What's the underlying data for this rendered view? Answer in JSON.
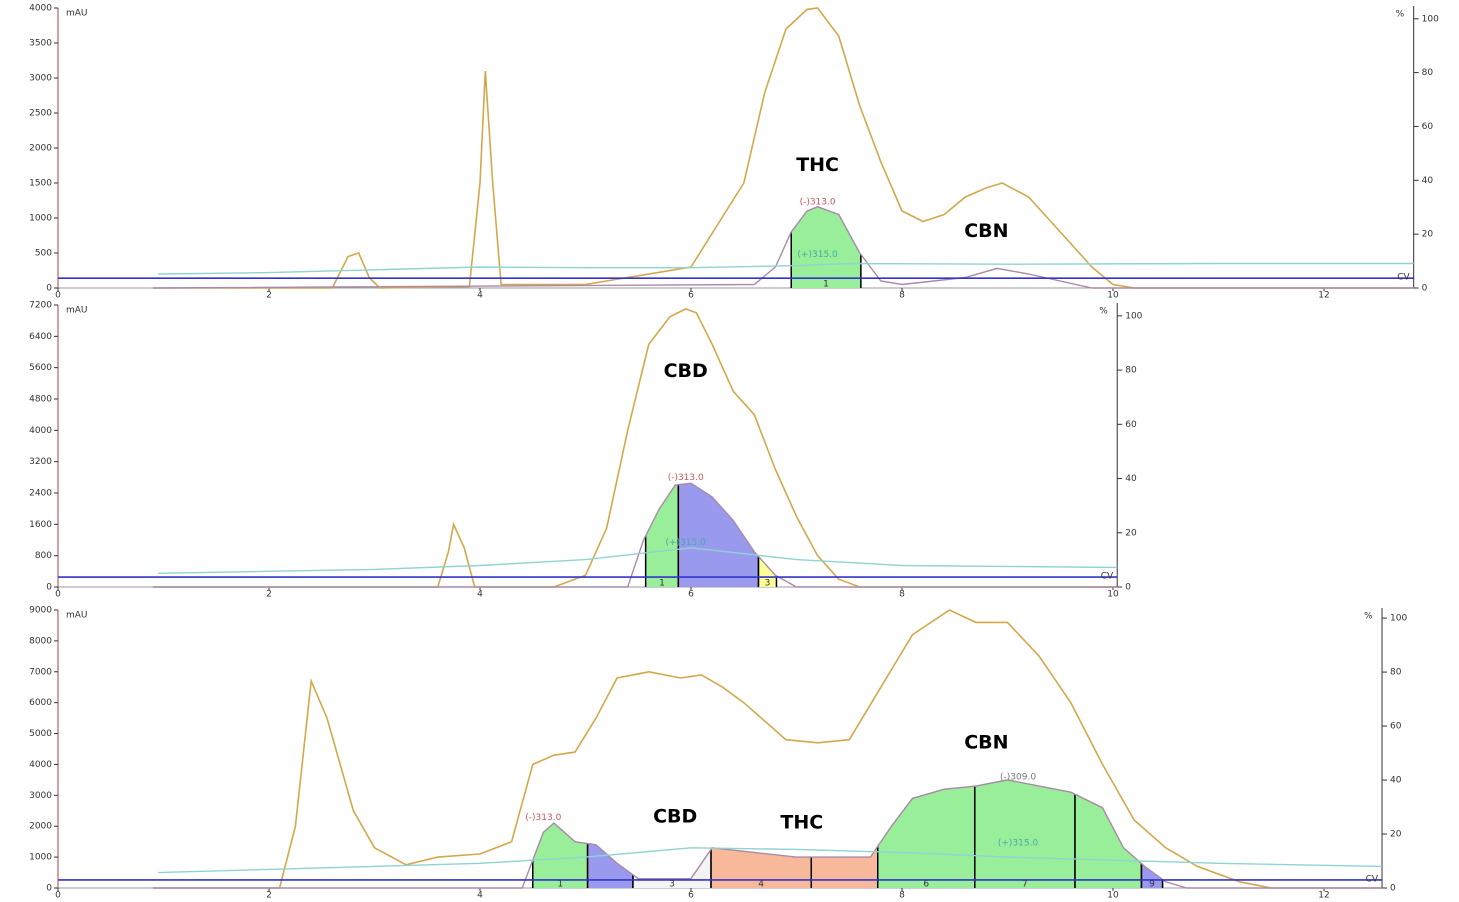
{
  "chart_data": [
    {
      "type": "line",
      "y_unit": "mAU",
      "y2_unit": "%",
      "threshold_label": "CV",
      "xlim": [
        0,
        12.85
      ],
      "xticks": [
        0,
        2,
        4,
        6,
        8,
        10,
        12
      ],
      "ylim": [
        0,
        4000
      ],
      "yticks": [
        0,
        500,
        1000,
        1500,
        2000,
        2500,
        3000,
        3500,
        4000
      ],
      "y2lim": [
        0,
        104
      ],
      "y2ticks": [
        0,
        20,
        40,
        60,
        80,
        100
      ],
      "threshold": {
        "value": 140,
        "color": "#3333cc"
      },
      "series": [
        {
          "color": "#d4a84a",
          "x": [
            0.9,
            2.6,
            2.75,
            2.85,
            2.95,
            3.05,
            3.9,
            4.0,
            4.05,
            4.12,
            4.2,
            5.0,
            6.0,
            6.5,
            6.7,
            6.9,
            7.1,
            7.2,
            7.4,
            7.6,
            7.8,
            8.0,
            8.2,
            8.4,
            8.6,
            8.8,
            8.95,
            9.2,
            9.5,
            9.8,
            10.0,
            10.2,
            12.85
          ],
          "values": [
            0,
            0,
            450,
            500,
            150,
            0,
            20,
            1500,
            3100,
            1500,
            50,
            50,
            300,
            1500,
            2800,
            3700,
            3980,
            4000,
            3600,
            2600,
            1800,
            1100,
            950,
            1050,
            1300,
            1430,
            1500,
            1300,
            800,
            300,
            50,
            0,
            0
          ]
        },
        {
          "color": "#a98aa9",
          "x": [
            0.9,
            6.6,
            6.8,
            6.95,
            7.1,
            7.2,
            7.4,
            7.6,
            7.8,
            8.0,
            8.6,
            8.9,
            9.2,
            9.8,
            12.85
          ],
          "values": [
            0,
            50,
            300,
            800,
            1100,
            1160,
            1050,
            500,
            100,
            50,
            150,
            280,
            200,
            0,
            0
          ]
        },
        {
          "color": "#8fd3d3",
          "x": [
            0.95,
            2,
            3,
            4,
            5,
            6,
            7,
            7.5,
            9,
            11,
            12.85
          ],
          "values": [
            200,
            220,
            260,
            300,
            290,
            290,
            320,
            350,
            340,
            350,
            350
          ]
        }
      ],
      "fractions": [
        {
          "x": [
            6.95,
            7.61
          ],
          "color": "#99ee99",
          "label": "1"
        }
      ],
      "annotations": [
        {
          "text": "THC",
          "x": 7.2,
          "y": 1750,
          "color": "#000000"
        },
        {
          "text": "CBN",
          "x": 8.8,
          "y": 810,
          "color": "#000000"
        },
        {
          "text": "(-)313.0",
          "x": 7.2,
          "y": 1230,
          "color": "#cc5555"
        },
        {
          "text": "(+)315.0",
          "x": 7.2,
          "y": 480,
          "color": "#44aaaa"
        }
      ]
    },
    {
      "type": "line",
      "y_unit": "mAU",
      "y2_unit": "%",
      "threshold_label": "CV",
      "xlim": [
        0,
        10.04
      ],
      "xticks": [
        0,
        2,
        4,
        6,
        8,
        10
      ],
      "ylim": [
        0,
        7200
      ],
      "yticks": [
        0,
        800,
        1600,
        2400,
        3200,
        4000,
        4800,
        5600,
        6400,
        7200
      ],
      "y2lim": [
        0,
        104
      ],
      "y2ticks": [
        0,
        20,
        40,
        60,
        80,
        100
      ],
      "threshold": {
        "value": 255,
        "color": "#3333cc"
      },
      "series": [
        {
          "color": "#d4a84a",
          "x": [
            0.9,
            3.6,
            3.7,
            3.75,
            3.85,
            3.95,
            4.7,
            5.0,
            5.2,
            5.4,
            5.6,
            5.8,
            5.95,
            6.05,
            6.2,
            6.4,
            6.6,
            6.8,
            7.0,
            7.2,
            7.4,
            7.6,
            10.04
          ],
          "values": [
            0,
            0,
            900,
            1600,
            1000,
            0,
            0,
            300,
            1500,
            4000,
            6200,
            6900,
            7100,
            7000,
            6200,
            5000,
            4400,
            3000,
            1800,
            800,
            200,
            0,
            0
          ]
        },
        {
          "color": "#a98aa9",
          "x": [
            0.9,
            5.4,
            5.55,
            5.7,
            5.85,
            6.0,
            6.2,
            6.4,
            6.6,
            6.8,
            7.0,
            10.04
          ],
          "values": [
            0,
            0,
            1200,
            2000,
            2600,
            2650,
            2300,
            1700,
            900,
            300,
            0,
            0
          ]
        },
        {
          "color": "#8fd3d3",
          "x": [
            0.95,
            3,
            4,
            5,
            6,
            7,
            8,
            10.04
          ],
          "values": [
            350,
            450,
            550,
            700,
            1000,
            700,
            550,
            500
          ]
        }
      ],
      "fractions": [
        {
          "x": [
            5.57,
            5.88
          ],
          "color": "#99ee99",
          "label": "1"
        },
        {
          "x": [
            5.88,
            6.64
          ],
          "color": "#9999ee",
          "label": null
        },
        {
          "x": [
            6.64,
            6.81
          ],
          "color": "#ffff99",
          "label": "3"
        }
      ],
      "annotations": [
        {
          "text": "CBD",
          "x": 5.95,
          "y": 5500,
          "color": "#000000"
        },
        {
          "text": "(-)313.0",
          "x": 5.95,
          "y": 2800,
          "color": "#cc5555"
        },
        {
          "text": "(+)315.0",
          "x": 5.95,
          "y": 1130,
          "color": "#44aaaa"
        }
      ]
    },
    {
      "type": "line",
      "y_unit": "mAU",
      "y2_unit": "%",
      "threshold_label": "CV",
      "xlim": [
        0,
        12.55
      ],
      "xticks": [
        0,
        2,
        4,
        6,
        8,
        10,
        12
      ],
      "ylim": [
        0,
        9000
      ],
      "yticks": [
        0,
        1000,
        2000,
        3000,
        4000,
        5000,
        6000,
        7000,
        8000,
        9000
      ],
      "y2lim": [
        0,
        103
      ],
      "y2ticks": [
        0,
        20,
        40,
        60,
        80,
        100
      ],
      "threshold": {
        "value": 260,
        "color": "#3333cc"
      },
      "series": [
        {
          "color": "#d4a84a",
          "x": [
            0.9,
            2.1,
            2.25,
            2.4,
            2.55,
            2.8,
            3.0,
            3.3,
            3.6,
            4.0,
            4.3,
            4.5,
            4.7,
            4.9,
            5.1,
            5.3,
            5.6,
            5.9,
            6.1,
            6.3,
            6.5,
            6.9,
            7.2,
            7.5,
            7.8,
            8.1,
            8.45,
            8.7,
            9.0,
            9.3,
            9.6,
            9.9,
            10.2,
            10.5,
            10.8,
            11.2,
            11.5,
            12.55
          ],
          "values": [
            0,
            0,
            2000,
            6700,
            5500,
            2500,
            1300,
            750,
            1000,
            1100,
            1500,
            4000,
            4300,
            4400,
            5500,
            6800,
            7000,
            6800,
            6900,
            6500,
            6000,
            4800,
            4700,
            4800,
            6500,
            8200,
            9000,
            8600,
            8600,
            7500,
            6000,
            4000,
            2200,
            1300,
            700,
            200,
            0,
            0
          ]
        },
        {
          "color": "#a98aa9",
          "x": [
            0.9,
            4.4,
            4.6,
            4.7,
            4.9,
            5.1,
            5.3,
            5.5,
            6.0,
            6.2,
            7.0,
            7.7,
            7.9,
            8.1,
            8.4,
            8.7,
            9.0,
            9.3,
            9.6,
            9.9,
            10.1,
            10.3,
            10.5,
            10.7,
            12.55
          ],
          "values": [
            0,
            0,
            1800,
            2100,
            1500,
            1400,
            800,
            300,
            300,
            1300,
            1000,
            1000,
            2000,
            2900,
            3200,
            3300,
            3500,
            3300,
            3100,
            2600,
            1300,
            700,
            200,
            0,
            0
          ]
        },
        {
          "color": "#8fd3d3",
          "x": [
            0.95,
            3,
            4,
            5,
            6,
            7,
            8,
            9,
            10,
            11,
            12.55
          ],
          "values": [
            500,
            700,
            800,
            1000,
            1300,
            1250,
            1150,
            1000,
            900,
            800,
            700
          ]
        }
      ],
      "fractions": [
        {
          "x": [
            4.5,
            5.02
          ],
          "color": "#99ee99",
          "label": "1"
        },
        {
          "x": [
            5.02,
            5.45
          ],
          "color": "#9999ee",
          "label": null
        },
        {
          "x": [
            5.45,
            6.19
          ],
          "color": "#f4f4f4",
          "label": "3"
        },
        {
          "x": [
            6.19,
            7.14
          ],
          "color": "#f7b99a",
          "label": "4"
        },
        {
          "x": [
            7.14,
            7.77
          ],
          "color": "#f7b99a",
          "label": null
        },
        {
          "x": [
            7.77,
            8.69
          ],
          "color": "#99ee99",
          "label": "6"
        },
        {
          "x": [
            8.69,
            9.64
          ],
          "color": "#99ee99",
          "label": "7"
        },
        {
          "x": [
            9.64,
            10.27
          ],
          "color": "#99ee99",
          "label": null
        },
        {
          "x": [
            10.27,
            10.47
          ],
          "color": "#9999ee",
          "label": "9"
        }
      ],
      "annotations": [
        {
          "text": "CBN",
          "x": 8.8,
          "y": 4700,
          "color": "#000000"
        },
        {
          "text": "CBD",
          "x": 5.85,
          "y": 2300,
          "color": "#000000"
        },
        {
          "text": "THC",
          "x": 7.05,
          "y": 2100,
          "color": "#000000"
        },
        {
          "text": "(-)313.0",
          "x": 4.6,
          "y": 2280,
          "color": "#cc5555"
        },
        {
          "text": "(-)309.0",
          "x": 9.1,
          "y": 3600,
          "color": "#777777"
        },
        {
          "text": "(+)315.0",
          "x": 9.1,
          "y": 1450,
          "color": "#44aaaa"
        }
      ]
    }
  ]
}
